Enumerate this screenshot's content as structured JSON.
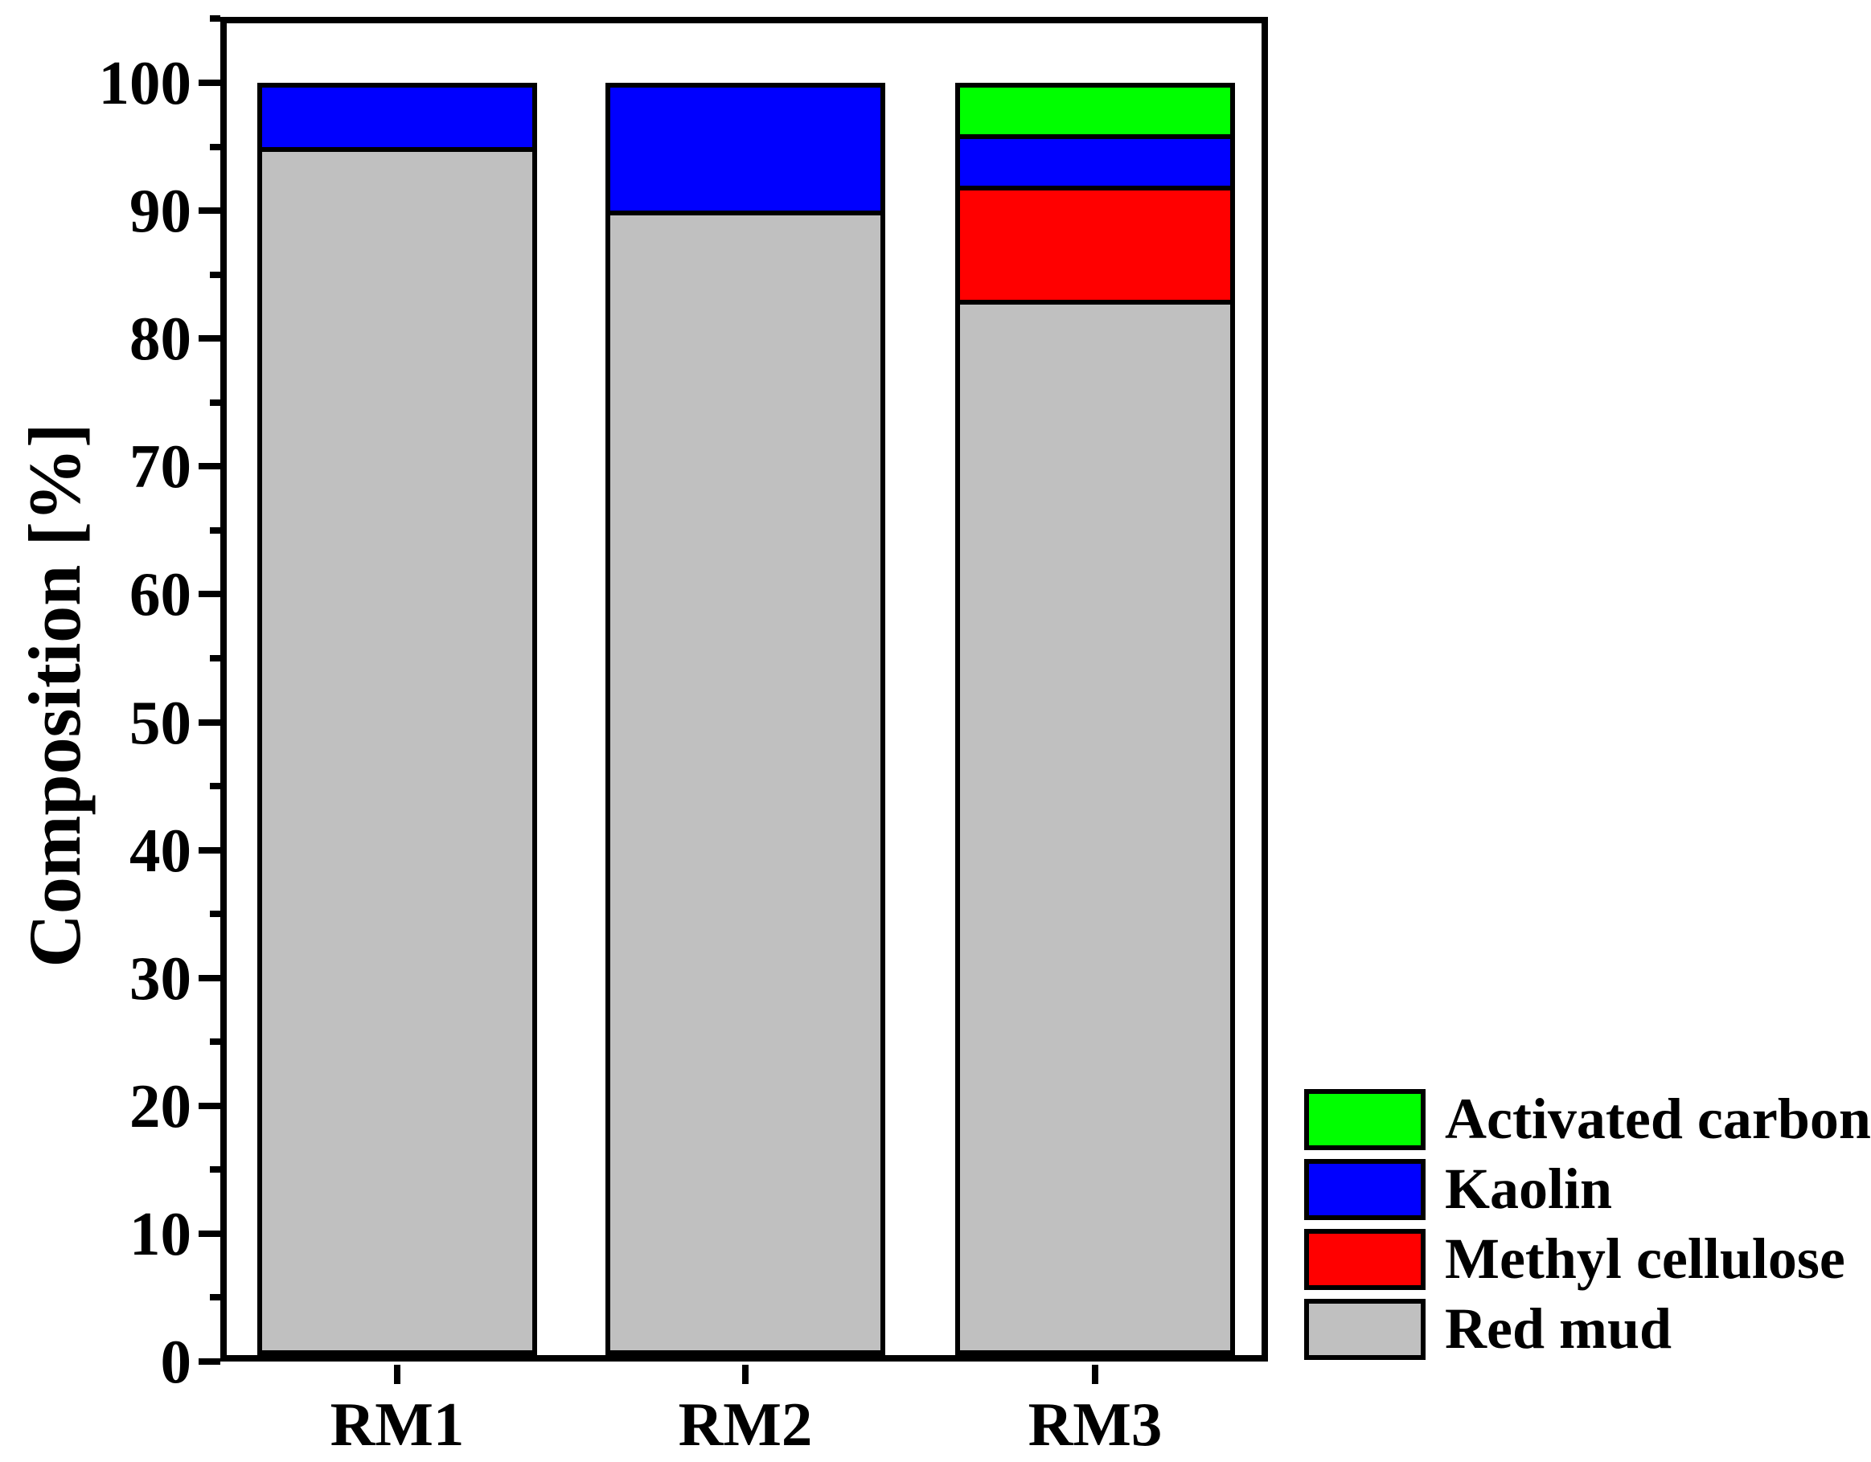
{
  "chart_data": {
    "type": "bar",
    "subtype": "stacked",
    "title": "",
    "xlabel": "",
    "ylabel": "Composition [%]",
    "categories": [
      "RM1",
      "RM2",
      "RM3"
    ],
    "series": [
      {
        "name": "Red mud",
        "color": "#c0c0c0",
        "values": [
          95,
          90,
          83
        ]
      },
      {
        "name": "Methyl cellulose",
        "color": "#ff0000",
        "values": [
          0,
          0,
          9
        ]
      },
      {
        "name": "Kaolin",
        "color": "#0000ff",
        "values": [
          5,
          10,
          4
        ]
      },
      {
        "name": "Activated carbon",
        "color": "#00ff00",
        "values": [
          0,
          0,
          4
        ]
      }
    ],
    "ylim": [
      0,
      105
    ],
    "ytick_major_step": 10,
    "ytick_minor_step": 5,
    "ytick_labels": [
      "0",
      "10",
      "20",
      "30",
      "40",
      "50",
      "60",
      "70",
      "80",
      "90",
      "100"
    ],
    "grid": false,
    "legend_position": "outside-lower-right",
    "legend_order": [
      "Activated carbon",
      "Kaolin",
      "Methyl cellulose",
      "Red mud"
    ]
  },
  "colors": {
    "axis": "#000000",
    "bar_border": "#000000",
    "background": "#ffffff"
  }
}
